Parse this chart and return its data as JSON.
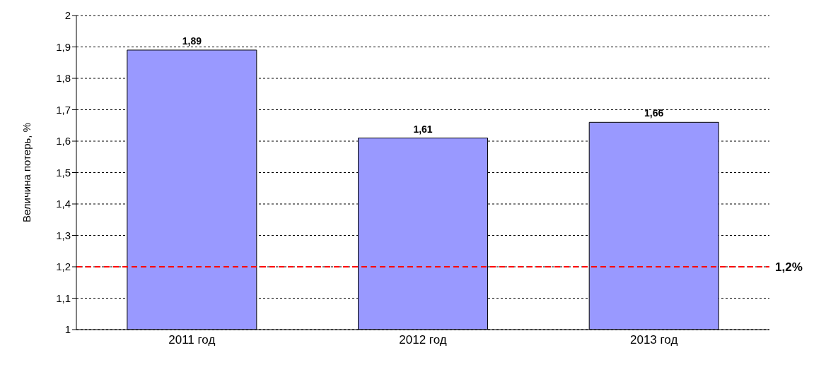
{
  "chart_data": {
    "type": "bar",
    "ylabel": "Величина потерь, %",
    "categories": [
      "2011 год",
      "2012 год",
      "2013 год"
    ],
    "values": [
      1.89,
      1.61,
      1.66
    ],
    "value_labels": [
      "1,89",
      "1,61",
      "1,66"
    ],
    "color": "#9999ff",
    "ylim": [
      1,
      2
    ],
    "yticks": [
      1,
      {
        "value": 1.1,
        "label": "1,1"
      },
      {
        "value": 1.2,
        "label": "1,2"
      },
      {
        "value": 1.3,
        "label": "1,3"
      },
      {
        "value": 1.4,
        "label": "1,4"
      },
      {
        "value": 1.5,
        "label": "1,5"
      },
      {
        "value": 1.6,
        "label": "1,6"
      },
      {
        "value": 1.7,
        "label": "1,7"
      },
      {
        "value": 1.8,
        "label": "1,8"
      },
      {
        "value": 1.9,
        "label": "1,9"
      },
      2
    ],
    "grid": "y",
    "ref_lines": [
      {
        "axis": "y",
        "value": 1.2,
        "label": "1,2%",
        "color": "#ff0000",
        "line_style": "dashed"
      }
    ]
  }
}
